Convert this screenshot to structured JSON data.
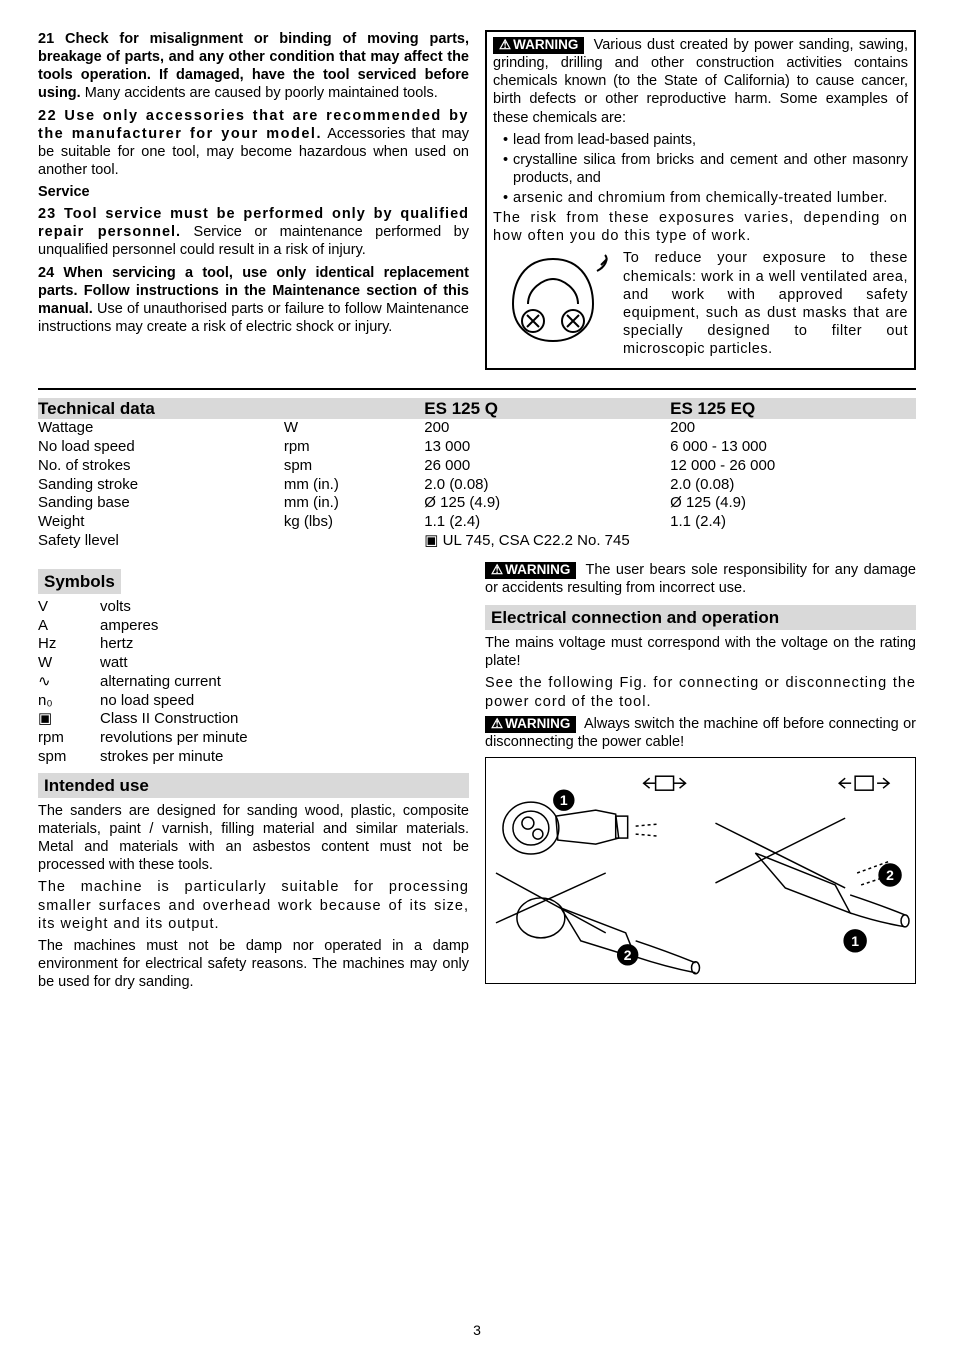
{
  "left_top": {
    "p21": "21 Check for misalignment or binding of moving parts, breakage of parts, and any other condition that may affect the tools operation. If damaged, have the tool serviced before using.",
    "p21_tail": " Many accidents are caused by poorly maintained tools.",
    "p22": "22 Use only accessories that are recommended by the manufacturer for your model.",
    "p22_tail": " Accessories that may be suitable for one tool, may become hazardous when used on another tool.",
    "service": "Service",
    "p23": "23 Tool service must be performed only by qualified repair personnel.",
    "p23_tail": " Service or maintenance performed by unqualified personnel could result in a risk of injury.",
    "p24": "24 When servicing a tool, use only identical replacement parts. Follow instructions in the Maintenance section of this manual.",
    "p24_tail": " Use of unauthorised parts or failure to follow Maintenance instructions may create a risk of electric shock or injury."
  },
  "warn_box": {
    "lead": " Various dust created by power sanding, sawing, grinding, drilling and other construction activities contains chemicals known (to the State of California) to cause cancer, birth defects or other reproductive harm. Some examples of these chemicals are:",
    "b1": "lead from lead-based paints,",
    "b2": "crystalline silica from bricks and cement and other masonry products, and",
    "b3": "arsenic and chromium from chemically-treated lumber.",
    "risk": "The risk from these exposures varies, depending on how often you do this type of work.",
    "resp": "To reduce your exposure to these chemicals: work in a well ventilated area, and work with approved safety equipment, such as dust masks that are specially designed to filter out microscopic particles."
  },
  "tech": {
    "head": "Technical data",
    "col_q": "ES 125 Q",
    "col_eq": "ES 125 EQ",
    "rows": {
      "wattage": {
        "label": "Wattage",
        "unit": "W",
        "q": "200",
        "eq": "200"
      },
      "speed": {
        "label": "No load speed",
        "unit": "rpm",
        "q": "13 000",
        "eq": "6 000 - 13 000"
      },
      "strokes": {
        "label": "No. of strokes",
        "unit": "spm",
        "q": "26 000",
        "eq": "12 000 - 26 000"
      },
      "stroke": {
        "label": "Sanding stroke",
        "unit": "mm (in.)",
        "q": "2.0 (0.08)",
        "eq": "2.0 (0.08)"
      },
      "base": {
        "label": "Sanding base",
        "unit": "mm (in.)",
        "q": "Ø 125 (4.9)",
        "eq": "Ø 125 (4.9)"
      },
      "weight": {
        "label": "Weight",
        "unit": "kg (lbs)",
        "q": "1.1 (2.4)",
        "eq": "1.1 (2.4)"
      },
      "safety": {
        "label": "Safety llevel",
        "unit": "",
        "q": "▣ UL 745, CSA C22.2 No. 745",
        "eq": ""
      }
    }
  },
  "symbols": {
    "head": "Symbols",
    "rows": [
      {
        "s": "V",
        "t": "volts"
      },
      {
        "s": "A",
        "t": "amperes"
      },
      {
        "s": "Hz",
        "t": "hertz"
      },
      {
        "s": "W",
        "t": "watt"
      },
      {
        "s": "∿",
        "t": "alternating current"
      },
      {
        "s": "n₀",
        "t": "no load speed"
      },
      {
        "s": "▣",
        "t": "Class II Construction"
      },
      {
        "s": "rpm",
        "t": "revolutions per minute"
      },
      {
        "s": "spm",
        "t": "strokes per minute"
      }
    ]
  },
  "intended": {
    "head": "Intended use",
    "p1": "The sanders are designed for sanding wood, plastic, composite materials, paint / varnish, filling material and similar materials. Metal and materials with an asbestos content must not be processed with these tools.",
    "p2": "The machine is particularly suitable for processing smaller surfaces and overhead work because of its size, its weight and its output.",
    "p3": "The machines must not be damp nor operated in a damp environment for electrical safety reasons. The machines may only be used for dry sanding."
  },
  "right_bottom": {
    "warn_user": " The user bears sole responsibility for any damage or accidents resulting from incorrect use.",
    "elec_head": "Electrical connection and operation",
    "elec_p1": "The mains voltage must correspond with the voltage on the rating plate!",
    "elec_p2": "See the following Fig. for connecting or disconnecting the power cord of the tool.",
    "warn_off": " Always switch the machine off before connecting or disconnecting the power cable!"
  },
  "warning_label": "WARNING",
  "warning_tri": "⚠",
  "page_number": "3"
}
